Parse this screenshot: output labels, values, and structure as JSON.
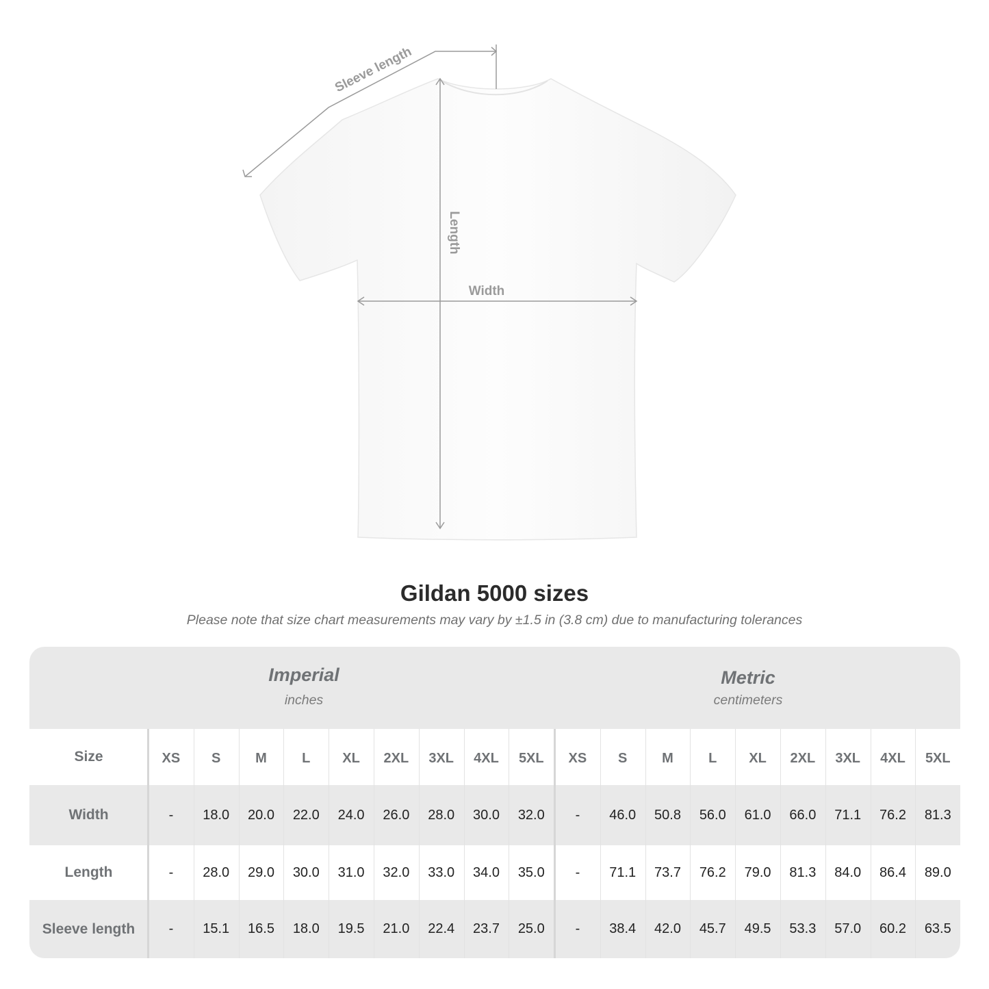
{
  "diagram": {
    "labels": {
      "sleeve": "Sleeve length",
      "length": "Length",
      "width": "Width"
    },
    "shirt_color": "#ffffff",
    "line_color": "#9a9a9a"
  },
  "title": "Gildan 5000 sizes",
  "note": "Please note that size chart measurements may vary by ±1.5 in (3.8 cm) due to manufacturing tolerances",
  "table": {
    "imperial": {
      "title": "Imperial",
      "unit": "inches"
    },
    "metric": {
      "title": "Metric",
      "unit": "centimeters"
    },
    "size_label": "Size",
    "sizes": [
      "XS",
      "S",
      "M",
      "L",
      "XL",
      "2XL",
      "3XL",
      "4XL",
      "5XL"
    ],
    "rows": [
      {
        "label": "Width",
        "imperial": [
          "-",
          "18.0",
          "20.0",
          "22.0",
          "24.0",
          "26.0",
          "28.0",
          "30.0",
          "32.0"
        ],
        "metric": [
          "-",
          "46.0",
          "50.8",
          "56.0",
          "61.0",
          "66.0",
          "71.1",
          "76.2",
          "81.3"
        ]
      },
      {
        "label": "Length",
        "imperial": [
          "-",
          "28.0",
          "29.0",
          "30.0",
          "31.0",
          "32.0",
          "33.0",
          "34.0",
          "35.0"
        ],
        "metric": [
          "-",
          "71.1",
          "73.7",
          "76.2",
          "79.0",
          "81.3",
          "84.0",
          "86.4",
          "89.0"
        ]
      },
      {
        "label": "Sleeve length",
        "imperial": [
          "-",
          "15.1",
          "16.5",
          "18.0",
          "19.5",
          "21.0",
          "22.4",
          "23.7",
          "25.0"
        ],
        "metric": [
          "-",
          "38.4",
          "42.0",
          "45.7",
          "49.5",
          "53.3",
          "57.0",
          "60.2",
          "63.5"
        ]
      }
    ]
  }
}
